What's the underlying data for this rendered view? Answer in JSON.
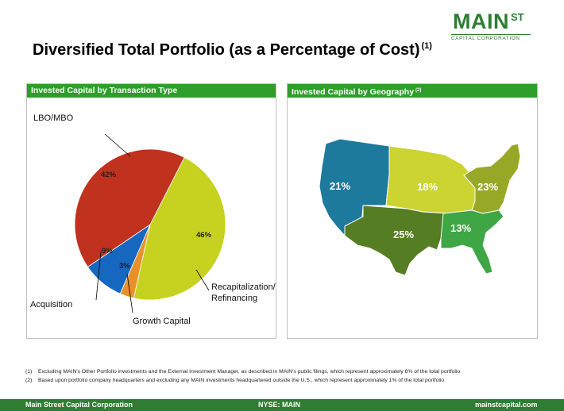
{
  "logo": {
    "main": "MAIN",
    "superscript": "ST",
    "subtitle": "CAPITAL CORPORATION"
  },
  "title": {
    "text": "Diversified Total Portfolio (as a Percentage of Cost)",
    "note": "(1)"
  },
  "left_panel": {
    "header": "Invested Capital by Transaction Type"
  },
  "right_panel": {
    "header": "Invested Capital by Geography",
    "note": "(2)"
  },
  "chart_data": [
    {
      "type": "pie",
      "title": "Invested Capital by Transaction Type",
      "slices": [
        {
          "label": "Recapitalization/ Refinancing",
          "label_lines": [
            "Recapitalization/",
            "Refinancing"
          ],
          "value": 46,
          "value_label": "46%",
          "color": "#c6d21f"
        },
        {
          "label": "Growth Capital",
          "value": 3,
          "value_label": "3%",
          "color": "#e8902a"
        },
        {
          "label": "Acquisition",
          "value": 9,
          "value_label": "9%",
          "color": "#1667c0"
        },
        {
          "label": "LBO/MBO",
          "value": 42,
          "value_label": "42%",
          "color": "#c0311e"
        }
      ]
    },
    {
      "type": "map",
      "title": "Invested Capital by Geography",
      "regions": [
        {
          "value": 21,
          "value_label": "21%",
          "color": "#1d7a9c"
        },
        {
          "value": 18,
          "value_label": "18%",
          "color": "#cbd431"
        },
        {
          "value": 23,
          "value_label": "23%",
          "color": "#97a827"
        },
        {
          "value": 25,
          "value_label": "25%",
          "color": "#557d23"
        },
        {
          "value": 13,
          "value_label": "13%",
          "color": "#3ea645"
        }
      ]
    }
  ],
  "footnotes": [
    {
      "mark": "(1)",
      "text": "Excluding MAIN's Other Portfolio investments and the External Investment Manager, as described in MAIN's public filings, which represent approximately 6% of the total portfolio"
    },
    {
      "mark": "(2)",
      "text": "Based upon portfolio company headquarters and excluding any MAIN investments headquartered outside the U.S., which represent approximately 1% of the total portfolio"
    }
  ],
  "footer": {
    "left": "Main Street Capital Corporation",
    "center": "NYSE: MAIN",
    "right": "mainstcapital.com"
  }
}
